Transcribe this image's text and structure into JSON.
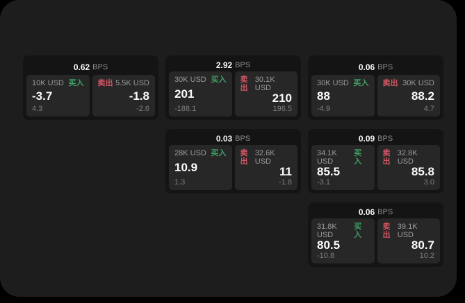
{
  "colors": {
    "panel": "#1d1d1d",
    "card": "#141414",
    "tile": "#272727",
    "buy": "#3fa064",
    "sell": "#d25563"
  },
  "cards": [
    {
      "bps": "0.62",
      "bps_unit": "BPS",
      "buy": {
        "amount": "10K USD",
        "side_label": "买入",
        "price": "-3.7",
        "sub_value": "4.3"
      },
      "sell": {
        "side_label": "卖出",
        "amount": "5.5K USD",
        "price": "-1.8",
        "sub_value": "-2.6"
      }
    },
    {
      "bps": "2.92",
      "bps_unit": "BPS",
      "buy": {
        "amount": "30K USD",
        "side_label": "买入",
        "price": "201",
        "sub_value": "-188.1"
      },
      "sell": {
        "side_label": "卖出",
        "amount": "30.1K USD",
        "price": "210",
        "sub_value": "196.5"
      }
    },
    {
      "bps": "0.06",
      "bps_unit": "BPS",
      "buy": {
        "amount": "30K USD",
        "side_label": "买入",
        "price": "88",
        "sub_value": "-4.9"
      },
      "sell": {
        "side_label": "卖出",
        "amount": "30K USD",
        "price": "88.2",
        "sub_value": "4.7"
      }
    },
    {
      "bps": "0.03",
      "bps_unit": "BPS",
      "buy": {
        "amount": "28K USD",
        "side_label": "买入",
        "price": "10.9",
        "sub_value": "1.3"
      },
      "sell": {
        "side_label": "卖出",
        "amount": "32.6K USD",
        "price": "11",
        "sub_value": "-1.8"
      }
    },
    {
      "bps": "0.09",
      "bps_unit": "BPS",
      "buy": {
        "amount": "34.1K USD",
        "side_label": "买入",
        "price": "85.5",
        "sub_value": "-3.1"
      },
      "sell": {
        "side_label": "卖出",
        "amount": "32.8K USD",
        "price": "85.8",
        "sub_value": "3.0"
      }
    },
    {
      "bps": "0.06",
      "bps_unit": "BPS",
      "buy": {
        "amount": "31.8K USD",
        "side_label": "买入",
        "price": "80.5",
        "sub_value": "-10.8"
      },
      "sell": {
        "side_label": "卖出",
        "amount": "39.1K USD",
        "price": "80.7",
        "sub_value": "10.2"
      }
    }
  ]
}
